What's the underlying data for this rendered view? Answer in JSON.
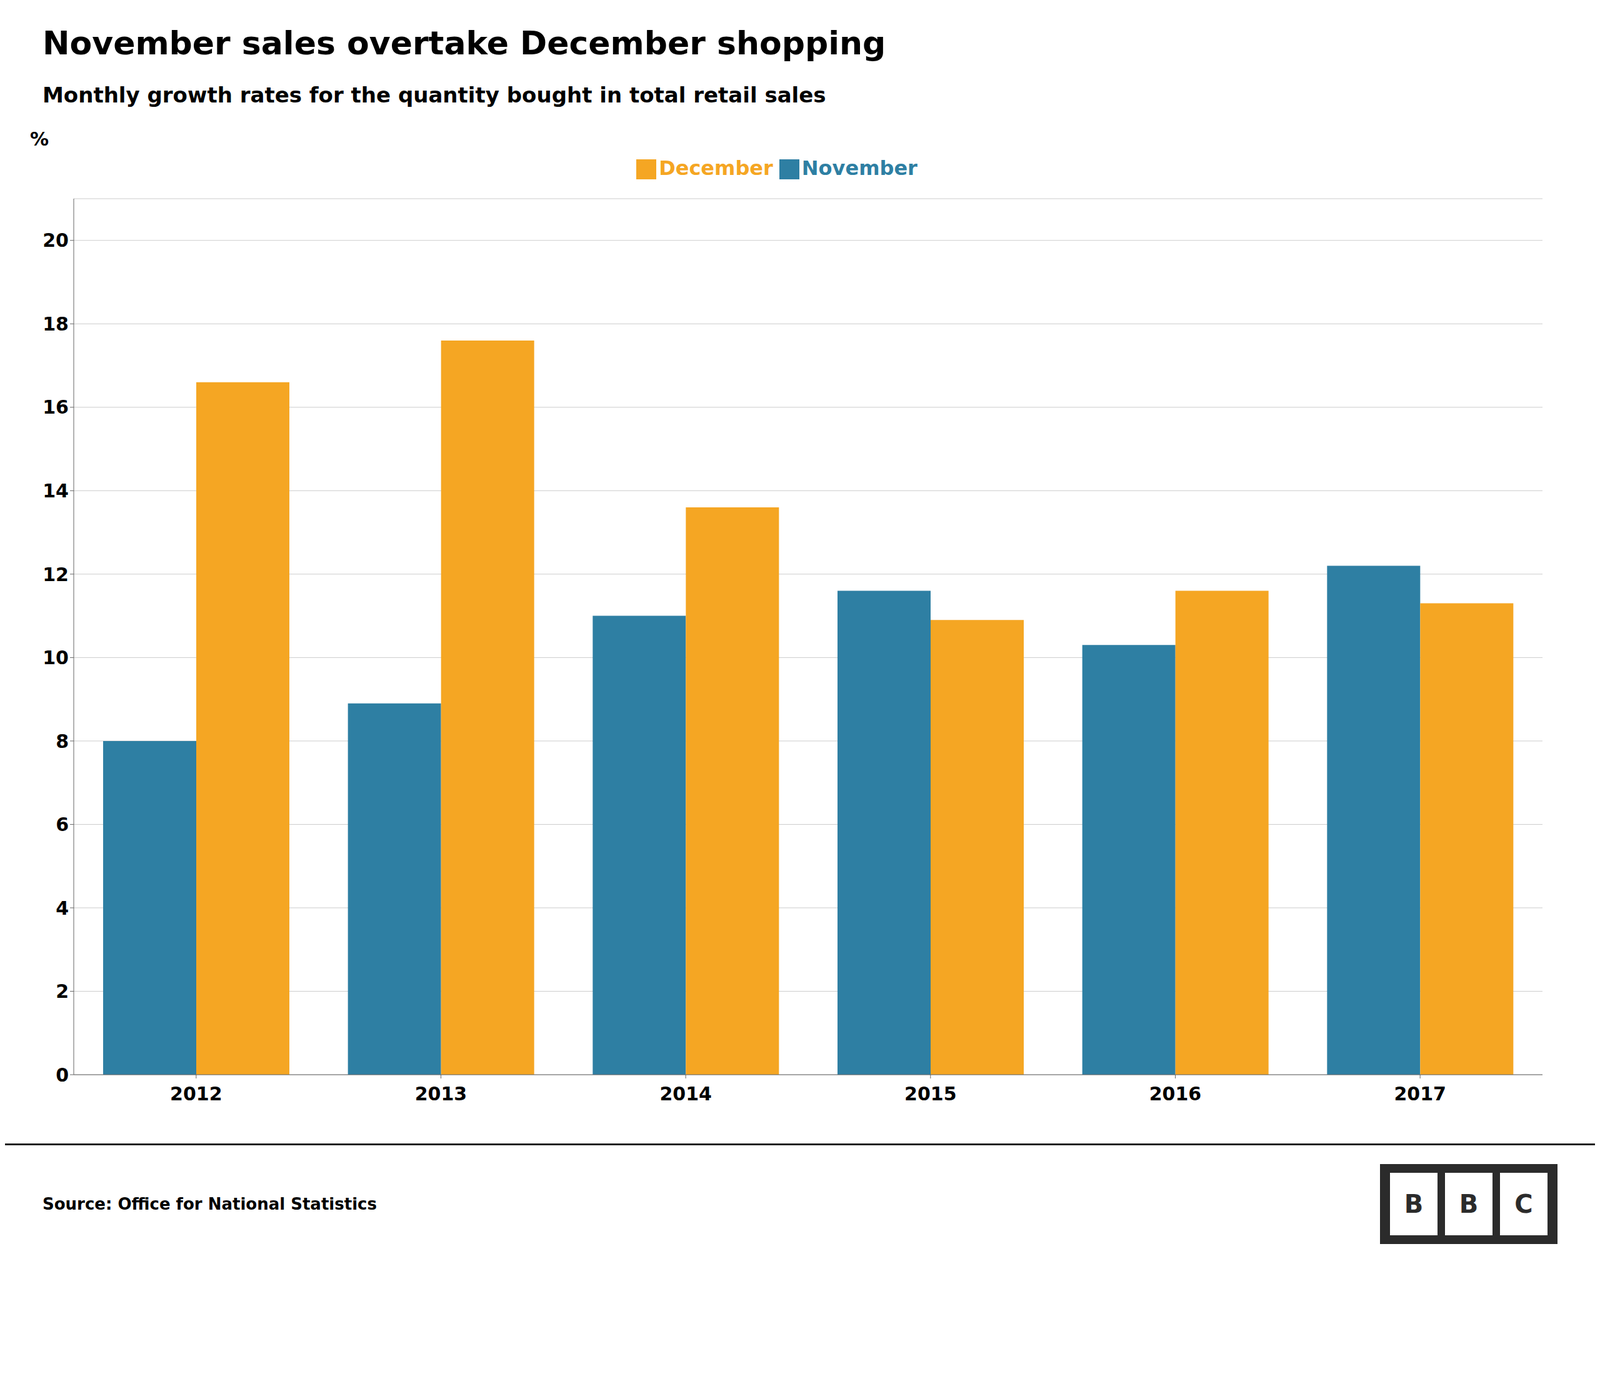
{
  "chart_data": {
    "type": "bar",
    "title": "November sales overtake December shopping",
    "subtitle": "Monthly growth rates for the quantity bought in total retail sales",
    "ylabel": "%",
    "categories": [
      "2012",
      "2013",
      "2014",
      "2015",
      "2016",
      "2017"
    ],
    "series": [
      {
        "name": "November",
        "color": "#2E7FA3",
        "values": [
          8.0,
          8.9,
          11.0,
          11.6,
          10.3,
          12.2
        ]
      },
      {
        "name": "December",
        "color": "#F5A623",
        "values": [
          16.6,
          17.6,
          13.6,
          10.9,
          11.6,
          11.3
        ]
      }
    ],
    "ylim": [
      0,
      21
    ],
    "yticks": [
      0,
      2,
      4,
      6,
      8,
      10,
      12,
      14,
      16,
      18,
      20
    ],
    "grid": true,
    "legend": "top",
    "source": "Source: Office for National Statistics",
    "annotations": [
      "B",
      "B",
      "C"
    ]
  }
}
